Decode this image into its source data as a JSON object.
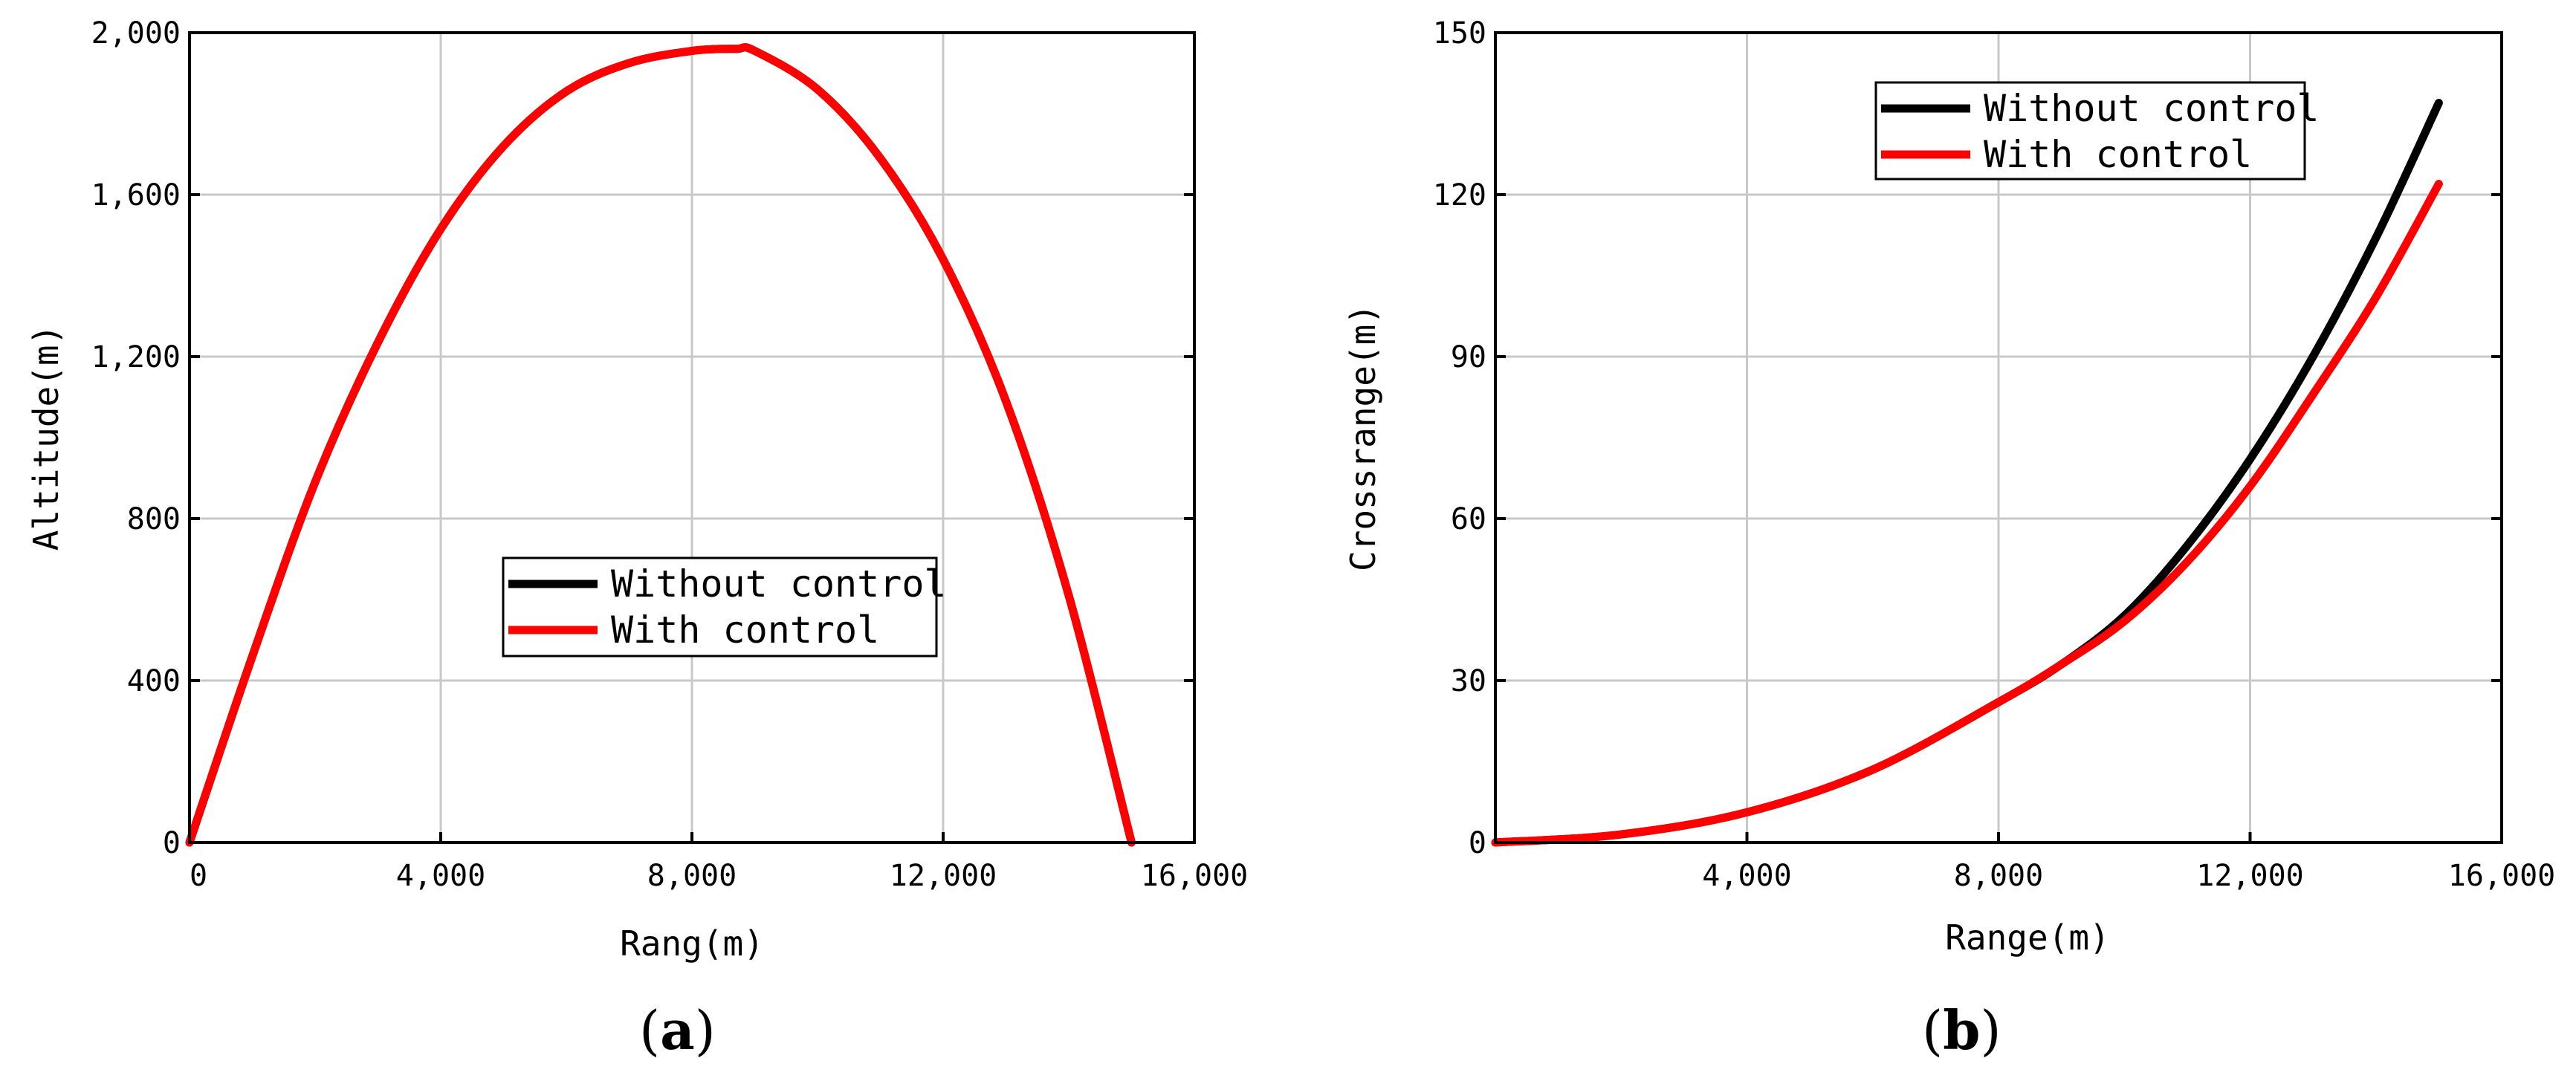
{
  "chart_data": [
    {
      "type": "line",
      "panel_label": "a",
      "xlabel": "Rang(m)",
      "ylabel": "Altitude(m)",
      "xlim": [
        0,
        16000
      ],
      "ylim": [
        0,
        2000
      ],
      "xticks": [
        0,
        4000,
        8000,
        12000,
        16000
      ],
      "xtick_labels": [
        "0",
        "4,000",
        "8,000",
        "12,000",
        "16,000"
      ],
      "yticks": [
        0,
        400,
        800,
        1200,
        1600,
        2000
      ],
      "ytick_labels": [
        "0",
        "400",
        "800",
        "1,200",
        "1,600",
        "2,000"
      ],
      "grid": true,
      "legend_position": "center",
      "series": [
        {
          "name": "Without control",
          "color": "#000000",
          "x": [
            0,
            1000,
            2000,
            3000,
            4000,
            5000,
            6000,
            7000,
            8000,
            8700,
            9000,
            10000,
            11000,
            12000,
            13000,
            14000,
            15000
          ],
          "y": [
            0,
            460,
            890,
            1235,
            1515,
            1720,
            1855,
            1925,
            1955,
            1960,
            1955,
            1860,
            1690,
            1440,
            1090,
            610,
            0
          ]
        },
        {
          "name": "With control",
          "color": "#ff0000",
          "x": [
            0,
            1000,
            2000,
            3000,
            4000,
            5000,
            6000,
            7000,
            8000,
            8700,
            9000,
            10000,
            11000,
            12000,
            13000,
            14000,
            15000
          ],
          "y": [
            0,
            460,
            890,
            1235,
            1515,
            1720,
            1855,
            1925,
            1955,
            1960,
            1955,
            1860,
            1690,
            1440,
            1090,
            610,
            0
          ]
        }
      ]
    },
    {
      "type": "line",
      "panel_label": "b",
      "xlabel": "Range(m)",
      "ylabel": "Crossrange(m)",
      "xlim": [
        0,
        16000
      ],
      "ylim": [
        0,
        150
      ],
      "xticks": [
        4000,
        8000,
        12000,
        16000
      ],
      "xtick_labels": [
        "4,000",
        "8,000",
        "12,000",
        "16,000"
      ],
      "yticks": [
        0,
        30,
        60,
        90,
        120,
        150
      ],
      "ytick_labels": [
        "0",
        "30",
        "60",
        "90",
        "120",
        "150"
      ],
      "grid": true,
      "legend_position": "top-right",
      "series": [
        {
          "name": "Without control",
          "color": "#000000",
          "x": [
            0,
            2000,
            4000,
            6000,
            8000,
            9000,
            10000,
            11000,
            12000,
            13000,
            14000,
            15000
          ],
          "y": [
            0,
            1.5,
            5.6,
            13.5,
            26,
            33,
            42,
            55,
            71,
            90,
            112,
            137
          ]
        },
        {
          "name": "With control",
          "color": "#ff0000",
          "x": [
            0,
            2000,
            4000,
            6000,
            8000,
            9000,
            10000,
            11000,
            12000,
            13000,
            14000,
            15000
          ],
          "y": [
            0,
            1.5,
            5.6,
            13.5,
            26,
            33,
            41,
            52,
            66,
            83,
            101,
            122
          ]
        }
      ]
    }
  ]
}
